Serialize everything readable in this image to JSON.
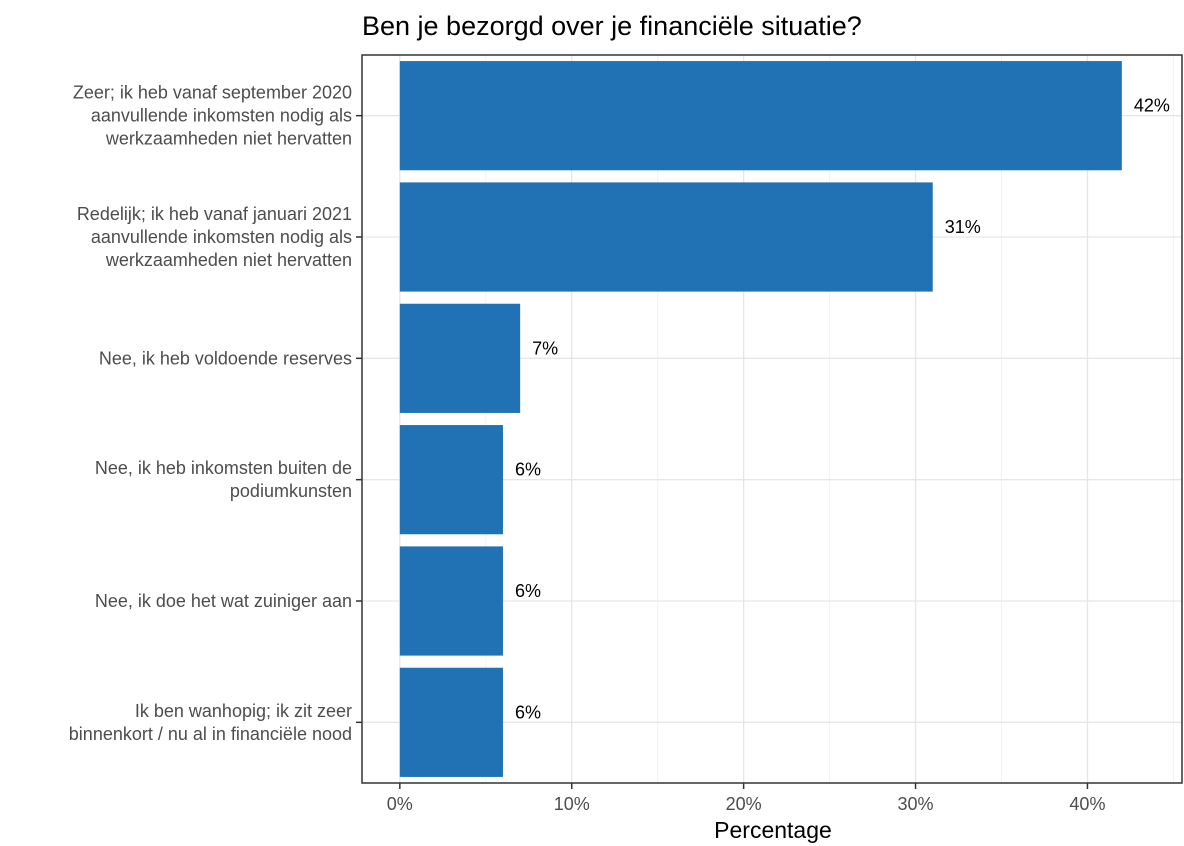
{
  "chart_data": {
    "type": "bar",
    "orientation": "horizontal",
    "title": "Ben je bezorgd over je financiële situatie?",
    "xlabel": "Percentage",
    "ylabel": "",
    "categories": [
      "Zeer; ik heb vanaf september 2020 aanvullende inkomsten nodig als werkzaamheden niet hervatten",
      "Redelijk; ik heb vanaf januari 2021 aanvullende inkomsten nodig als werkzaamheden niet hervatten",
      "Nee, ik heb voldoende reserves",
      "Nee, ik heb inkomsten buiten de podiumkunsten",
      "Nee, ik doe het wat zuiniger aan",
      "Ik ben wanhopig; ik zit zeer binnenkort / nu al in financiële nood"
    ],
    "category_lines": [
      [
        "Zeer; ik heb vanaf september 2020",
        "aanvullende inkomsten nodig als",
        "werkzaamheden niet hervatten"
      ],
      [
        "Redelijk; ik heb vanaf januari 2021",
        "aanvullende inkomsten nodig als",
        "werkzaamheden niet hervatten"
      ],
      [
        "Nee, ik heb voldoende reserves"
      ],
      [
        "Nee, ik heb inkomsten buiten de",
        "podiumkunsten"
      ],
      [
        "Nee, ik doe het wat zuiniger aan"
      ],
      [
        "Ik ben wanhopig; ik zit zeer",
        "binnenkort / nu al in financiële nood"
      ]
    ],
    "values": [
      42,
      31,
      7,
      6,
      6,
      6
    ],
    "data_labels": [
      "42%",
      "31%",
      "7%",
      "6%",
      "6%",
      "6%"
    ],
    "xlim": [
      -2.2,
      45.5
    ],
    "xticks": [
      0,
      10,
      20,
      30,
      40
    ],
    "xtick_labels": [
      "0%",
      "10%",
      "20%",
      "30%",
      "40%"
    ],
    "grid": true,
    "legend": "none",
    "bar_color": "#2171b5"
  }
}
